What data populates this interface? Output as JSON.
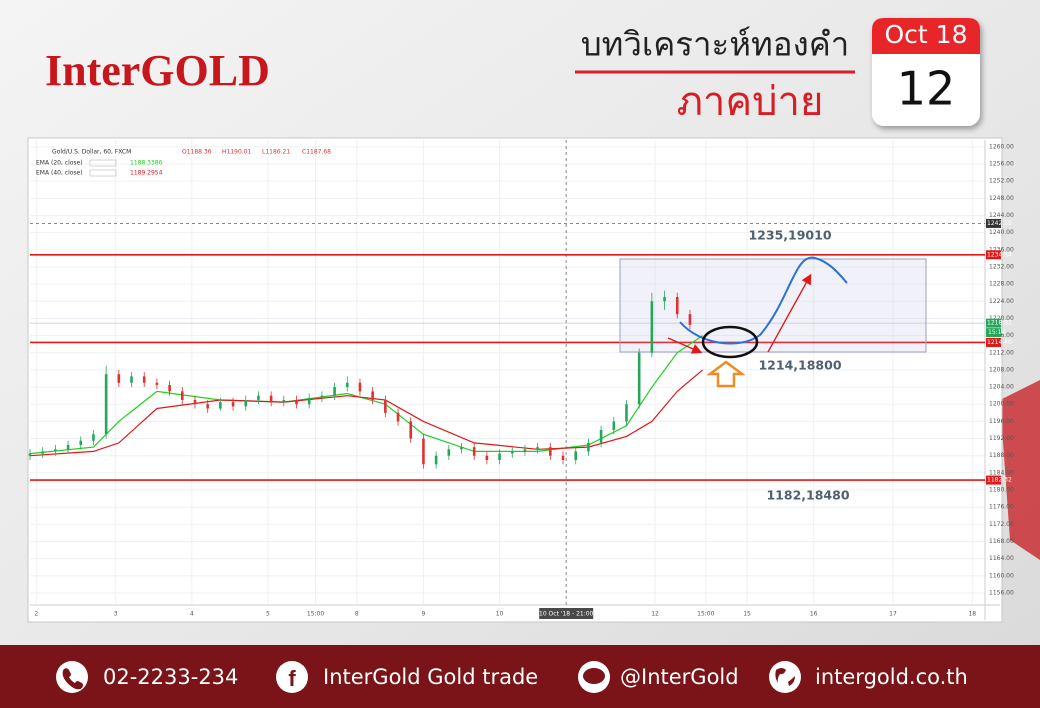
{
  "header": {
    "logo": "InterGOLD",
    "title": "บทวิเคราะห์ทองคำ",
    "subtitle": "ภาคบ่าย",
    "date_month": "Oct 18",
    "date_day": "12"
  },
  "chart_data": {
    "type": "candlestick",
    "title": "Gold/U.S. Dollar, 60, FXCM",
    "ohlc_labels": [
      "O1188.36",
      "H1190.01",
      "L1186.21",
      "C1187.68"
    ],
    "up_color": "#26a65b",
    "down_color": "#e03131",
    "x": [
      0,
      4,
      8,
      12,
      16,
      20,
      24,
      28,
      32,
      36,
      40,
      44,
      48,
      52,
      56,
      60,
      64,
      68,
      72,
      76,
      80,
      84,
      88,
      92,
      96,
      100,
      104,
      108,
      112,
      116,
      120,
      124,
      128,
      132,
      136,
      140,
      144,
      148,
      152,
      156,
      160,
      164,
      168,
      172,
      176,
      180,
      184,
      188,
      192,
      196,
      200,
      204,
      208
    ],
    "open": [
      1188,
      1188.5,
      1189,
      1189.5,
      1190.5,
      1191.5,
      1193,
      1207,
      1205,
      1206.5,
      1205,
      1204.5,
      1203,
      1201,
      1200,
      1199,
      1200.5,
      1199.5,
      1201,
      1202,
      1200.5,
      1201,
      1200,
      1201.5,
      1202,
      1204,
      1205,
      1203,
      1201,
      1198,
      1196,
      1192,
      1186,
      1188,
      1189.5,
      1190,
      1188,
      1187,
      1188.5,
      1189,
      1189.5,
      1190,
      1188,
      1187,
      1189,
      1191,
      1194,
      1196,
      1200,
      1212,
      1224,
      1225,
      1221
    ],
    "high": [
      1189.5,
      1190,
      1190.5,
      1191.5,
      1192.5,
      1194,
      1209,
      1208,
      1207.5,
      1207.5,
      1206,
      1205.5,
      1204,
      1202,
      1201,
      1201.5,
      1201.5,
      1202,
      1203,
      1203,
      1202,
      1202,
      1202.5,
      1203,
      1205,
      1206.5,
      1206,
      1204,
      1202,
      1199,
      1197,
      1193,
      1189,
      1190.5,
      1191,
      1191,
      1189,
      1189.5,
      1190,
      1190.5,
      1191,
      1191,
      1189,
      1190,
      1192,
      1195,
      1197,
      1201,
      1213,
      1226,
      1226.5,
      1226,
      1222
    ],
    "low": [
      1187,
      1187.5,
      1188,
      1188.5,
      1189.5,
      1190.5,
      1192,
      1204,
      1204,
      1204,
      1203.5,
      1202,
      1200,
      1199,
      1198,
      1198.5,
      1198.5,
      1198.5,
      1200,
      1199.5,
      1199.5,
      1199,
      1199,
      1200.5,
      1201,
      1203,
      1202,
      1200,
      1197,
      1195,
      1191,
      1185,
      1185,
      1187,
      1188.5,
      1187,
      1186,
      1186,
      1187.5,
      1188,
      1188.5,
      1187,
      1186,
      1186,
      1188,
      1190,
      1193,
      1195,
      1199,
      1211,
      1222,
      1220,
      1217.5
    ],
    "close": [
      1188.5,
      1189,
      1189.5,
      1190.5,
      1191.5,
      1193,
      1207,
      1205,
      1206.5,
      1205,
      1204.5,
      1203,
      1201,
      1200,
      1199,
      1200.5,
      1199.5,
      1201,
      1202,
      1200.5,
      1201,
      1200,
      1201.5,
      1202,
      1204,
      1205,
      1203,
      1201,
      1198,
      1196,
      1192,
      1186,
      1188,
      1189.5,
      1190,
      1188,
      1187,
      1188.5,
      1189,
      1189.5,
      1190,
      1188,
      1187,
      1189,
      1191,
      1194,
      1196,
      1200,
      1212,
      1224,
      1225,
      1221,
      1218.5
    ],
    "series": [
      {
        "name": "EMA (20, close)",
        "value_label": "1188.3386",
        "color": "#1fd11f",
        "x": [
          0,
          20,
          28,
          40,
          60,
          80,
          100,
          112,
          124,
          140,
          160,
          176,
          188,
          196,
          204,
          212
        ],
        "values": [
          1188.5,
          1190,
          1196,
          1203,
          1201,
          1200.5,
          1202.5,
          1200,
          1193,
          1189,
          1189,
          1190.5,
          1195,
          1204,
          1212,
          1216
        ]
      },
      {
        "name": "EMA (40, close)",
        "value_label": "1189.2954",
        "color": "#e01818",
        "x": [
          0,
          20,
          28,
          40,
          60,
          80,
          100,
          112,
          124,
          140,
          160,
          176,
          188,
          196,
          204,
          212
        ],
        "values": [
          1188,
          1189,
          1191,
          1199,
          1201,
          1200.5,
          1202,
          1201,
          1196,
          1191,
          1189.5,
          1190,
          1192.5,
          1196,
          1203,
          1208
        ]
      }
    ],
    "levels": [
      {
        "value": 1242.15,
        "label": "1242.15",
        "color": "#333333",
        "style": "dashed"
      },
      {
        "value": 1234.84,
        "label": "1234.84",
        "color": "#e01818",
        "style": "solid"
      },
      {
        "value": 1218.91,
        "label": "1218.91",
        "color": "#26a65b",
        "style": "faint"
      },
      {
        "value": 1214.4,
        "label": "1214.40",
        "color": "#e01818",
        "style": "solid"
      },
      {
        "value": 1182.32,
        "label": "1182.32",
        "color": "#e01818",
        "style": "solid"
      }
    ],
    "countdown": "15:14",
    "crosshair": {
      "value": 169,
      "label": "10 Oct '18 - 21:00"
    },
    "annotations": [
      "1235,19010",
      "1214,18800",
      "1182,18480"
    ],
    "xlim": [
      0,
      301
    ],
    "ylim": [
      1153.2,
      1261.6
    ],
    "xticks": [
      {
        "value": 2,
        "label": "2"
      },
      {
        "value": 27,
        "label": "3"
      },
      {
        "value": 51,
        "label": "4"
      },
      {
        "value": 75,
        "label": "5"
      },
      {
        "value": 90,
        "label": "15:00"
      },
      {
        "value": 103,
        "label": "8"
      },
      {
        "value": 124,
        "label": "9"
      },
      {
        "value": 148,
        "label": "10"
      },
      {
        "value": 197,
        "label": "12"
      },
      {
        "value": 213,
        "label": "15:00"
      },
      {
        "value": 226,
        "label": "15"
      },
      {
        "value": 247,
        "label": "16"
      },
      {
        "value": 272,
        "label": "17"
      },
      {
        "value": 297,
        "label": "18"
      }
    ],
    "yticks": [
      {
        "value": 1156,
        "label": "1156.00"
      },
      {
        "value": 1160,
        "label": "1160.00"
      },
      {
        "value": 1164,
        "label": "1164.00"
      },
      {
        "value": 1168,
        "label": "1168.00"
      },
      {
        "value": 1172,
        "label": "1172.00"
      },
      {
        "value": 1176,
        "label": "1176.00"
      },
      {
        "value": 1180,
        "label": "1180.00"
      },
      {
        "value": 1184,
        "label": "1184.00"
      },
      {
        "value": 1188,
        "label": "1188.00"
      },
      {
        "value": 1192,
        "label": "1192.00"
      },
      {
        "value": 1196,
        "label": "1196.00"
      },
      {
        "value": 1200,
        "label": "1200.00"
      },
      {
        "value": 1204,
        "label": "1204.00"
      },
      {
        "value": 1208,
        "label": "1208.00"
      },
      {
        "value": 1212,
        "label": "1212.00"
      },
      {
        "value": 1216,
        "label": "1216.00"
      },
      {
        "value": 1220,
        "label": "1220.00"
      },
      {
        "value": 1224,
        "label": "1224.00"
      },
      {
        "value": 1228,
        "label": "1228.00"
      },
      {
        "value": 1232,
        "label": "1232.00"
      },
      {
        "value": 1236,
        "label": "1236.00"
      },
      {
        "value": 1240,
        "label": "1240.00"
      },
      {
        "value": 1244,
        "label": "1244.00"
      },
      {
        "value": 1248,
        "label": "1248.00"
      },
      {
        "value": 1252,
        "label": "1252.00"
      },
      {
        "value": 1256,
        "label": "1256.00"
      },
      {
        "value": 1260,
        "label": "1260.00"
      }
    ],
    "grid": true
  },
  "footer": {
    "phone": "02-2233-234",
    "facebook": "InterGold Gold trade",
    "line": "@InterGold",
    "website": "intergold.co.th"
  }
}
